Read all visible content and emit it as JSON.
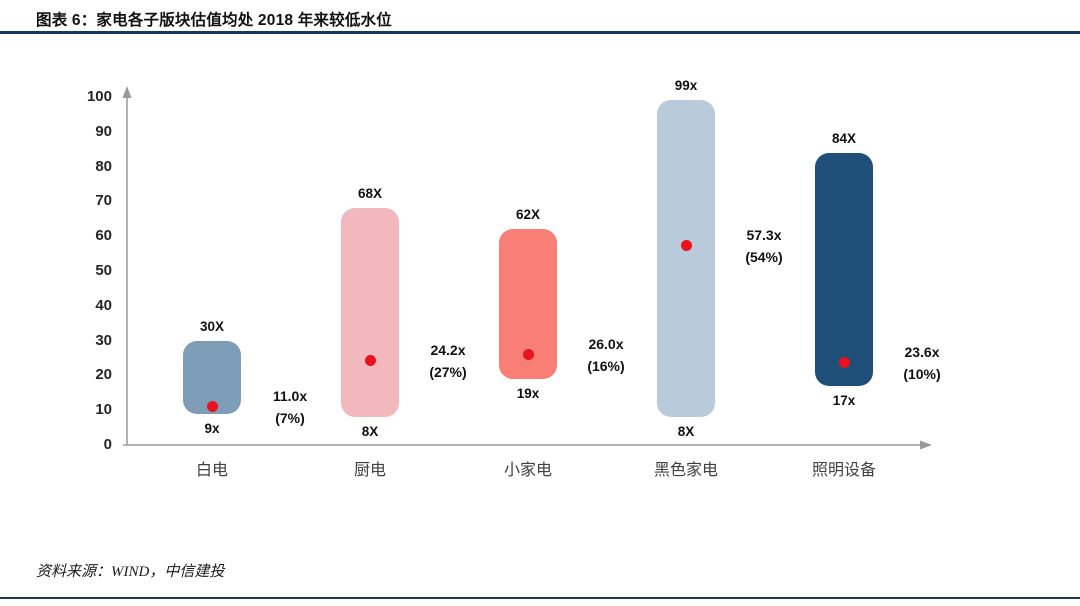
{
  "header": {
    "title": "图表 6：家电各子版块估值均处 2018 年来较低水位"
  },
  "footer": {
    "source": "资料来源：WIND，中信建投"
  },
  "colors": {
    "rule": "#17375e",
    "dot": "#e8131c",
    "axis": "#999999",
    "label_text": "#111111",
    "tick_text": "#262626",
    "category_text": "#404040"
  },
  "chart_data": {
    "type": "bar",
    "subtype": "floating valuation range bars since 2018 with red dot marking current multiple",
    "title": "家电各子版块估值均处 2018 年来较低水位",
    "xlabel": "",
    "ylabel": "",
    "ylim": [
      0,
      100
    ],
    "yticks": [
      0,
      10,
      20,
      30,
      40,
      50,
      60,
      70,
      80,
      90,
      100
    ],
    "grid": false,
    "legend": false,
    "categories": [
      "白电",
      "厨电",
      "小家电",
      "黑色家电",
      "照明设备"
    ],
    "series": [
      {
        "name": "range_low",
        "values": [
          9,
          8,
          19,
          8,
          17
        ]
      },
      {
        "name": "range_high",
        "values": [
          30,
          68,
          62,
          99,
          84
        ]
      },
      {
        "name": "current",
        "values": [
          11.0,
          24.2,
          26.0,
          57.3,
          23.6
        ]
      }
    ],
    "bars": [
      {
        "category": "白电",
        "low": 9,
        "high": 30,
        "current": 11.0,
        "low_label": "9x",
        "high_label": "30X",
        "annotation_line1": "11.0x",
        "annotation_line2": "(7%)",
        "color": "#7e9db8"
      },
      {
        "category": "厨电",
        "low": 8,
        "high": 68,
        "current": 24.2,
        "low_label": "8X",
        "high_label": "68X",
        "annotation_line1": "24.2x",
        "annotation_line2": "(27%)",
        "color": "#f3b8bd"
      },
      {
        "category": "小家电",
        "low": 19,
        "high": 62,
        "current": 26.0,
        "low_label": "19x",
        "high_label": "62X",
        "annotation_line1": "26.0x",
        "annotation_line2": "(16%)",
        "color": "#f97e76"
      },
      {
        "category": "黑色家电",
        "low": 8,
        "high": 99,
        "current": 57.3,
        "low_label": "8X",
        "high_label": "99x",
        "annotation_line1": "57.3x",
        "annotation_line2": "(54%)",
        "color": "#b9cbdb"
      },
      {
        "category": "照明设备",
        "low": 17,
        "high": 84,
        "current": 23.6,
        "low_label": "17x",
        "high_label": "84X",
        "annotation_line1": "23.6x",
        "annotation_line2": "(10%)",
        "color": "#1f4e79"
      }
    ]
  }
}
